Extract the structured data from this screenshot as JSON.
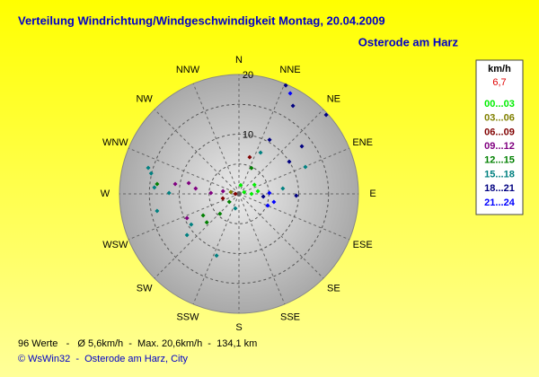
{
  "chart_data": {
    "type": "polar",
    "title": "Verteilung Windrichtung/Windgeschwindigkeit  Montag, 20.04.2009",
    "subtitle": "Osterode am Harz",
    "directions": [
      "N",
      "NNE",
      "NE",
      "ENE",
      "E",
      "ESE",
      "SE",
      "SSE",
      "S",
      "SSW",
      "SW",
      "WSW",
      "W",
      "WNW",
      "NW",
      "NNW"
    ],
    "rlim": [
      0,
      20
    ],
    "rticks": [
      10,
      20
    ],
    "rgrid": [
      5,
      10,
      15
    ],
    "legend_title": "km/h",
    "legend_value": "6,7",
    "legend_value_color": "#e00000",
    "series": [
      {
        "name": "00...03",
        "color": "#00ee00",
        "direction": [
          81.9,
          90,
          71.6,
          11.3,
          59.5
        ],
        "values": [
          3.2,
          2.1,
          0.9,
          1.5,
          3.0
        ]
      },
      {
        "name": "03...06",
        "color": "#808000",
        "direction": [
          282.6
        ],
        "values": [
          1.4
        ]
      },
      {
        "name": "06...09",
        "color": "#800000",
        "direction": [
          16.3,
          270,
          254.5
        ],
        "values": [
          6.4,
          0.6,
          2.8
        ]
      },
      {
        "name": "09...12",
        "color": "#800080",
        "direction": [
          278.8,
          282.1,
          277.1,
          271.8,
          279.5,
          245
        ],
        "values": [
          10.8,
          8.6,
          7.3,
          4.7,
          2.7,
          9.6
        ]
      },
      {
        "name": "12...15",
        "color": "#008000",
        "direction": [
          276.9,
          239,
          228.4,
          223.7,
          230.7,
          25.8
        ],
        "values": [
          13.8,
          7.0,
          7.2,
          4.6,
          2.1,
          4.8
        ]
      },
      {
        "name": "15...18",
        "color": "#008080",
        "direction": [
          67.9,
          83,
          286,
          283.2,
          258.2,
          274.3,
          270.7,
          237.3,
          231.6,
          199.9,
          27.6,
          194
        ],
        "values": [
          12.0,
          7.4,
          15.8,
          15.1,
          14.0,
          14.2,
          11.7,
          9.5,
          11.1,
          11.0,
          7.8,
          2.5
        ]
      },
      {
        "name": "18...21",
        "color": "#000080",
        "direction": [
          23.3,
          31.5,
          47.8,
          52.9,
          29.5,
          57.3,
          91.8,
          96.3
        ],
        "values": [
          19.8,
          17.3,
          19.7,
          13.2,
          10.4,
          10.0,
          9.6,
          4.1
        ]
      },
      {
        "name": "21...24",
        "color": "#0000ff",
        "direction": [
          27.0,
          88.3,
          103,
          112.1
        ],
        "values": [
          18.9,
          5.1,
          6.0,
          5.2
        ]
      }
    ],
    "stats": "96 Werte   -   Ø 5,6km/h  -  Max. 20,6km/h  -  134,1 km",
    "footer": "© WsWin32  -  Osterode am Harz, City"
  }
}
